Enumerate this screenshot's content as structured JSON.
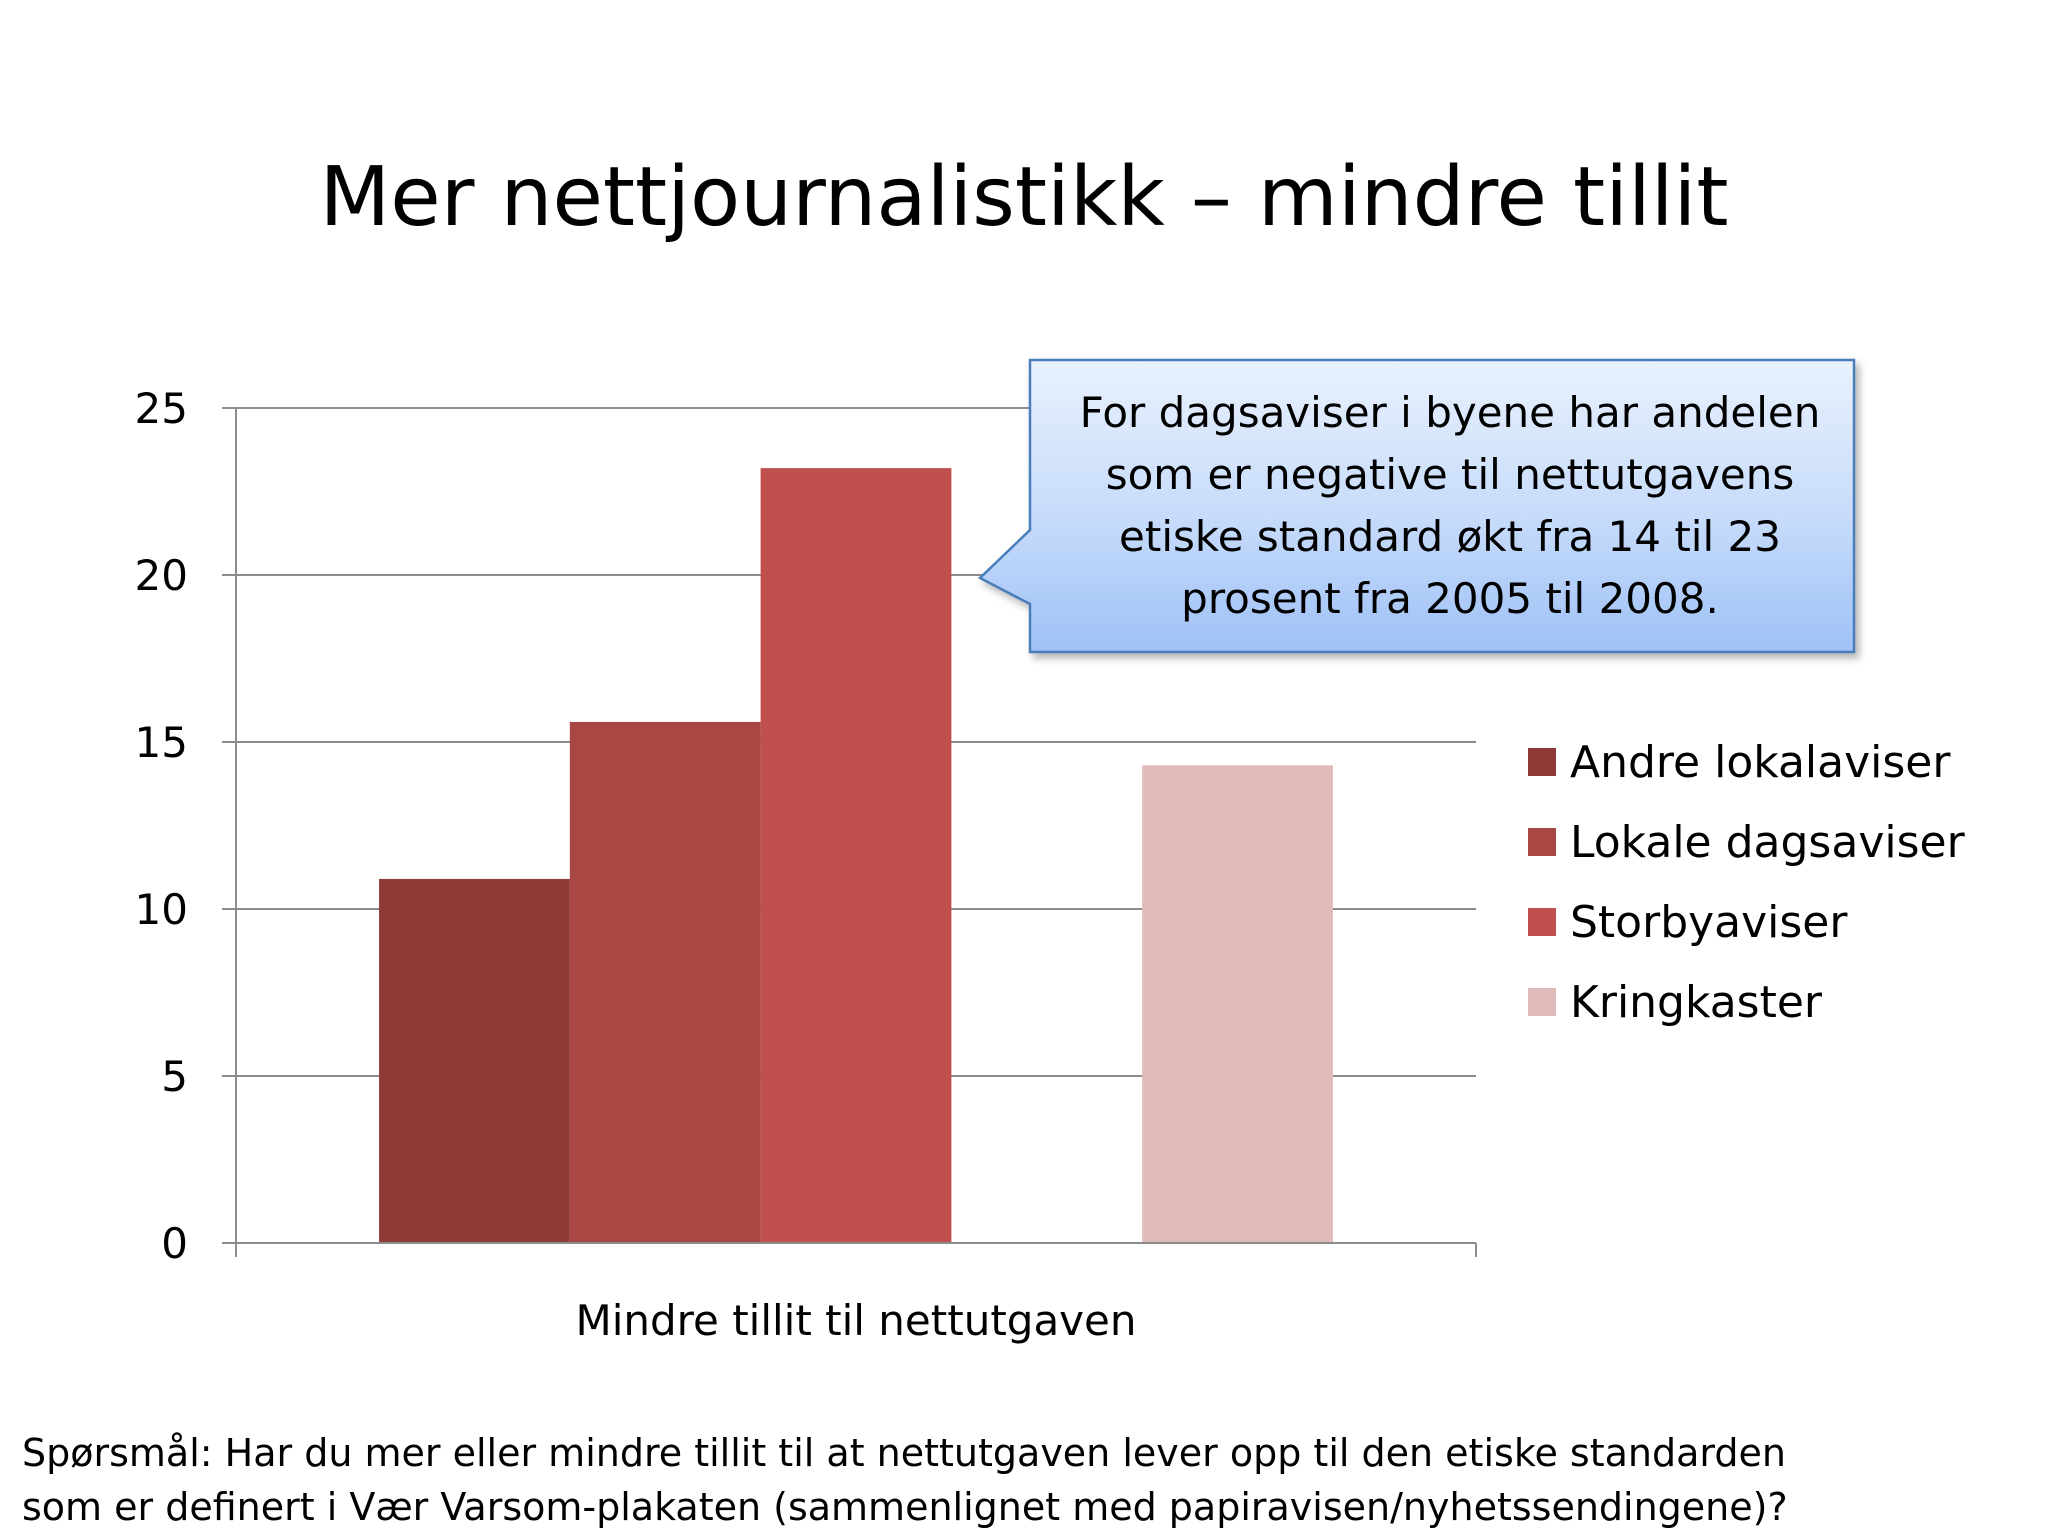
{
  "title": "Mer nettjournalistikk – mindre tillit",
  "callout": {
    "text": "For dagsaviser i byene har andelen som er negative til nettutgavens etiske standard økt fra 14 til 23 prosent fra 2005 til 2008."
  },
  "footnote": {
    "line1": "Spørsmål: Har du mer eller mindre tillit til at nettutgaven lever opp til den etiske standarden",
    "line2": "som er definert i Vær Varsom-plakaten (sammenlignet med papiravisen/nyhetssendingene)?"
  },
  "chart_data": {
    "type": "bar",
    "categories": [
      "Mindre tillit til nettutgaven"
    ],
    "xlabel": "Mindre tillit til nettutgaven",
    "ylabel": "",
    "ylim": [
      0,
      25
    ],
    "yticks": [
      0,
      5,
      10,
      15,
      20,
      25
    ],
    "grid": true,
    "legend_position": "right",
    "series": [
      {
        "name": "Andre lokalaviser",
        "values": [
          10.9
        ],
        "color": "#8e3b37"
      },
      {
        "name": "Lokale dagsaviser",
        "values": [
          15.6
        ],
        "color": "#a84744"
      },
      {
        "name": "Storbyaviser",
        "values": [
          23.2
        ],
        "color": "#bf504e"
      },
      {
        "name": "Kringkaster",
        "values": [
          14.3
        ],
        "color": "#e0b9b9"
      }
    ]
  }
}
